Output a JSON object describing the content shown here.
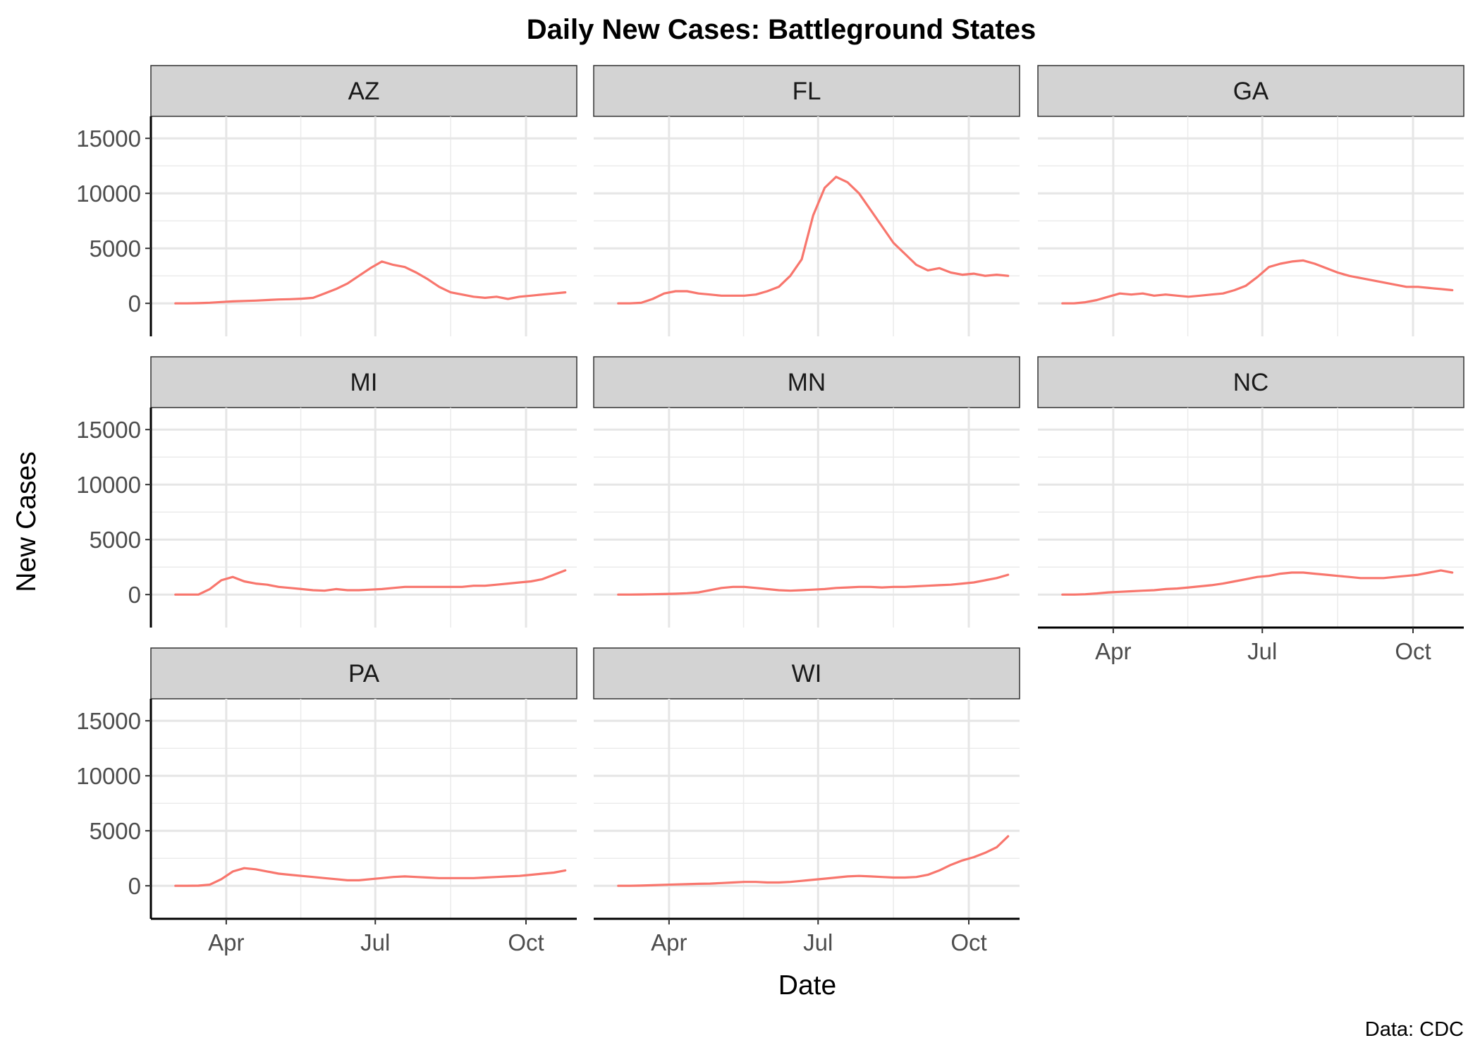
{
  "chart_data": {
    "type": "line",
    "title": "Daily New Cases: Battleground States",
    "xlabel": "Date",
    "ylabel": "New Cases",
    "caption": "Data: CDC",
    "x_unit": "date",
    "x_start": "2020-03-01",
    "x_step_days": 7,
    "x_ticks": [
      {
        "label": "Apr",
        "date": "2020-04-01"
      },
      {
        "label": "Jul",
        "date": "2020-07-01"
      },
      {
        "label": "Oct",
        "date": "2020-10-01"
      }
    ],
    "y_ticks": [
      {
        "label": "0",
        "value": 0
      },
      {
        "label": "5000",
        "value": 5000
      },
      {
        "label": "10000",
        "value": 10000
      },
      {
        "label": "15000",
        "value": 15000
      }
    ],
    "xlim": [
      "2020-02-15",
      "2020-11-01"
    ],
    "ylim": [
      -3000,
      17000
    ],
    "line_color": "#F8766D",
    "grid": true,
    "legend": "none",
    "panels": [
      {
        "name": "AZ",
        "x": [
          "2020-03-01",
          "2020-03-08",
          "2020-03-15",
          "2020-03-22",
          "2020-03-29",
          "2020-04-05",
          "2020-04-12",
          "2020-04-19",
          "2020-04-26",
          "2020-05-03",
          "2020-05-10",
          "2020-05-17",
          "2020-05-24",
          "2020-05-31",
          "2020-06-07",
          "2020-06-14",
          "2020-06-21",
          "2020-06-28",
          "2020-07-05",
          "2020-07-12",
          "2020-07-19",
          "2020-07-26",
          "2020-08-02",
          "2020-08-09",
          "2020-08-16",
          "2020-08-23",
          "2020-08-30",
          "2020-09-06",
          "2020-09-13",
          "2020-09-20",
          "2020-09-27",
          "2020-10-04",
          "2020-10-11",
          "2020-10-18",
          "2020-10-25"
        ],
        "values": [
          0,
          0,
          20,
          60,
          120,
          180,
          220,
          250,
          300,
          350,
          380,
          420,
          500,
          900,
          1300,
          1800,
          2500,
          3200,
          3800,
          3500,
          3300,
          2800,
          2200,
          1500,
          1000,
          800,
          600,
          500,
          600,
          400,
          600,
          700,
          800,
          900,
          1000
        ]
      },
      {
        "name": "FL",
        "x": [
          "2020-03-01",
          "2020-03-08",
          "2020-03-15",
          "2020-03-22",
          "2020-03-29",
          "2020-04-05",
          "2020-04-12",
          "2020-04-19",
          "2020-04-26",
          "2020-05-03",
          "2020-05-10",
          "2020-05-17",
          "2020-05-24",
          "2020-05-31",
          "2020-06-07",
          "2020-06-14",
          "2020-06-21",
          "2020-06-28",
          "2020-07-05",
          "2020-07-12",
          "2020-07-19",
          "2020-07-26",
          "2020-08-02",
          "2020-08-09",
          "2020-08-16",
          "2020-08-23",
          "2020-08-30",
          "2020-09-06",
          "2020-09-13",
          "2020-09-20",
          "2020-09-27",
          "2020-10-04",
          "2020-10-11",
          "2020-10-18",
          "2020-10-25"
        ],
        "values": [
          0,
          0,
          50,
          400,
          900,
          1100,
          1100,
          900,
          800,
          700,
          700,
          700,
          800,
          1100,
          1500,
          2500,
          4000,
          8000,
          10500,
          11500,
          11000,
          10000,
          8500,
          7000,
          5500,
          4500,
          3500,
          3000,
          3200,
          2800,
          2600,
          2700,
          2500,
          2600,
          2500
        ]
      },
      {
        "name": "GA",
        "x": [
          "2020-03-01",
          "2020-03-08",
          "2020-03-15",
          "2020-03-22",
          "2020-03-29",
          "2020-04-05",
          "2020-04-12",
          "2020-04-19",
          "2020-04-26",
          "2020-05-03",
          "2020-05-10",
          "2020-05-17",
          "2020-05-24",
          "2020-05-31",
          "2020-06-07",
          "2020-06-14",
          "2020-06-21",
          "2020-06-28",
          "2020-07-05",
          "2020-07-12",
          "2020-07-19",
          "2020-07-26",
          "2020-08-02",
          "2020-08-09",
          "2020-08-16",
          "2020-08-23",
          "2020-08-30",
          "2020-09-06",
          "2020-09-13",
          "2020-09-20",
          "2020-09-27",
          "2020-10-04",
          "2020-10-11",
          "2020-10-18",
          "2020-10-25"
        ],
        "values": [
          0,
          0,
          100,
          300,
          600,
          900,
          800,
          900,
          700,
          800,
          700,
          600,
          700,
          800,
          900,
          1200,
          1600,
          2400,
          3300,
          3600,
          3800,
          3900,
          3600,
          3200,
          2800,
          2500,
          2300,
          2100,
          1900,
          1700,
          1500,
          1500,
          1400,
          1300,
          1200
        ]
      },
      {
        "name": "MI",
        "x": [
          "2020-03-01",
          "2020-03-08",
          "2020-03-15",
          "2020-03-22",
          "2020-03-29",
          "2020-04-05",
          "2020-04-12",
          "2020-04-19",
          "2020-04-26",
          "2020-05-03",
          "2020-05-10",
          "2020-05-17",
          "2020-05-24",
          "2020-05-31",
          "2020-06-07",
          "2020-06-14",
          "2020-06-21",
          "2020-06-28",
          "2020-07-05",
          "2020-07-12",
          "2020-07-19",
          "2020-07-26",
          "2020-08-02",
          "2020-08-09",
          "2020-08-16",
          "2020-08-23",
          "2020-08-30",
          "2020-09-06",
          "2020-09-13",
          "2020-09-20",
          "2020-09-27",
          "2020-10-04",
          "2020-10-11",
          "2020-10-18",
          "2020-10-25"
        ],
        "values": [
          0,
          0,
          0,
          500,
          1300,
          1600,
          1200,
          1000,
          900,
          700,
          600,
          500,
          400,
          350,
          500,
          400,
          400,
          450,
          500,
          600,
          700,
          700,
          700,
          700,
          700,
          700,
          800,
          800,
          900,
          1000,
          1100,
          1200,
          1400,
          1800,
          2200
        ]
      },
      {
        "name": "MN",
        "x": [
          "2020-03-01",
          "2020-03-08",
          "2020-03-15",
          "2020-03-22",
          "2020-03-29",
          "2020-04-05",
          "2020-04-12",
          "2020-04-19",
          "2020-04-26",
          "2020-05-03",
          "2020-05-10",
          "2020-05-17",
          "2020-05-24",
          "2020-05-31",
          "2020-06-07",
          "2020-06-14",
          "2020-06-21",
          "2020-06-28",
          "2020-07-05",
          "2020-07-12",
          "2020-07-19",
          "2020-07-26",
          "2020-08-02",
          "2020-08-09",
          "2020-08-16",
          "2020-08-23",
          "2020-08-30",
          "2020-09-06",
          "2020-09-13",
          "2020-09-20",
          "2020-09-27",
          "2020-10-04",
          "2020-10-11",
          "2020-10-18",
          "2020-10-25"
        ],
        "values": [
          0,
          0,
          10,
          30,
          50,
          80,
          120,
          200,
          400,
          600,
          700,
          700,
          600,
          500,
          400,
          350,
          400,
          450,
          500,
          600,
          650,
          700,
          700,
          650,
          700,
          700,
          750,
          800,
          850,
          900,
          1000,
          1100,
          1300,
          1500,
          1800
        ]
      },
      {
        "name": "NC",
        "x": [
          "2020-03-01",
          "2020-03-08",
          "2020-03-15",
          "2020-03-22",
          "2020-03-29",
          "2020-04-05",
          "2020-04-12",
          "2020-04-19",
          "2020-04-26",
          "2020-05-03",
          "2020-05-10",
          "2020-05-17",
          "2020-05-24",
          "2020-05-31",
          "2020-06-07",
          "2020-06-14",
          "2020-06-21",
          "2020-06-28",
          "2020-07-05",
          "2020-07-12",
          "2020-07-19",
          "2020-07-26",
          "2020-08-02",
          "2020-08-09",
          "2020-08-16",
          "2020-08-23",
          "2020-08-30",
          "2020-09-06",
          "2020-09-13",
          "2020-09-20",
          "2020-09-27",
          "2020-10-04",
          "2020-10-11",
          "2020-10-18",
          "2020-10-25"
        ],
        "values": [
          0,
          0,
          30,
          100,
          200,
          250,
          300,
          350,
          400,
          500,
          550,
          650,
          750,
          850,
          1000,
          1200,
          1400,
          1600,
          1700,
          1900,
          2000,
          2000,
          1900,
          1800,
          1700,
          1600,
          1500,
          1500,
          1500,
          1600,
          1700,
          1800,
          2000,
          2200,
          2000
        ]
      },
      {
        "name": "PA",
        "x": [
          "2020-03-01",
          "2020-03-08",
          "2020-03-15",
          "2020-03-22",
          "2020-03-29",
          "2020-04-05",
          "2020-04-12",
          "2020-04-19",
          "2020-04-26",
          "2020-05-03",
          "2020-05-10",
          "2020-05-17",
          "2020-05-24",
          "2020-05-31",
          "2020-06-07",
          "2020-06-14",
          "2020-06-21",
          "2020-06-28",
          "2020-07-05",
          "2020-07-12",
          "2020-07-19",
          "2020-07-26",
          "2020-08-02",
          "2020-08-09",
          "2020-08-16",
          "2020-08-23",
          "2020-08-30",
          "2020-09-06",
          "2020-09-13",
          "2020-09-20",
          "2020-09-27",
          "2020-10-04",
          "2020-10-11",
          "2020-10-18",
          "2020-10-25"
        ],
        "values": [
          0,
          0,
          10,
          100,
          600,
          1300,
          1600,
          1500,
          1300,
          1100,
          1000,
          900,
          800,
          700,
          600,
          500,
          500,
          600,
          700,
          800,
          850,
          800,
          750,
          700,
          700,
          700,
          700,
          750,
          800,
          850,
          900,
          1000,
          1100,
          1200,
          1400
        ]
      },
      {
        "name": "WI",
        "x": [
          "2020-03-01",
          "2020-03-08",
          "2020-03-15",
          "2020-03-22",
          "2020-03-29",
          "2020-04-05",
          "2020-04-12",
          "2020-04-19",
          "2020-04-26",
          "2020-05-03",
          "2020-05-10",
          "2020-05-17",
          "2020-05-24",
          "2020-05-31",
          "2020-06-07",
          "2020-06-14",
          "2020-06-21",
          "2020-06-28",
          "2020-07-05",
          "2020-07-12",
          "2020-07-19",
          "2020-07-26",
          "2020-08-02",
          "2020-08-09",
          "2020-08-16",
          "2020-08-23",
          "2020-08-30",
          "2020-09-06",
          "2020-09-13",
          "2020-09-20",
          "2020-09-27",
          "2020-10-04",
          "2020-10-11",
          "2020-10-18",
          "2020-10-25"
        ],
        "values": [
          0,
          0,
          20,
          50,
          90,
          120,
          150,
          180,
          200,
          250,
          300,
          350,
          350,
          300,
          300,
          350,
          450,
          550,
          650,
          750,
          850,
          900,
          850,
          800,
          750,
          750,
          800,
          1000,
          1400,
          1900,
          2300,
          2600,
          3000,
          3500,
          4500
        ]
      }
    ]
  }
}
